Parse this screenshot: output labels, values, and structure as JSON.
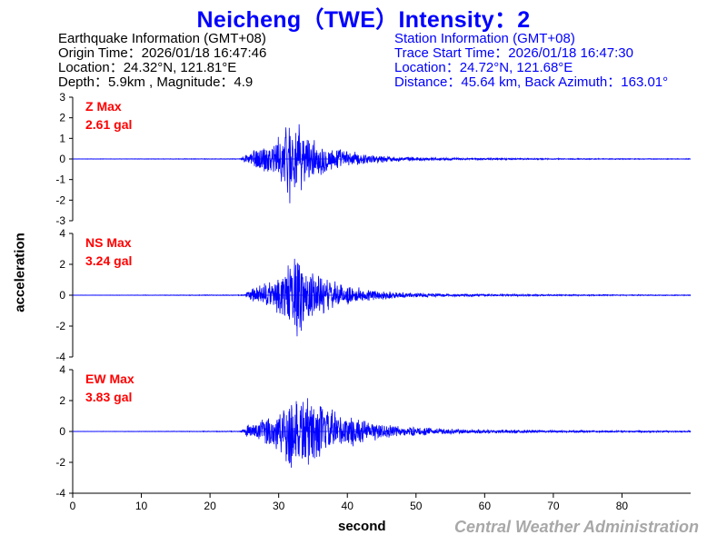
{
  "header": {
    "title": "Neicheng（TWE）Intensity：2"
  },
  "earthquake_info": {
    "heading": "Earthquake Information  (GMT+08)",
    "origin_time": "Origin Time：2026/01/18 16:47:46",
    "location": "Location：24.32°N, 121.81°E",
    "depth_magnitude": "Depth：5.9km , Magnitude：4.9"
  },
  "station_info": {
    "heading": "Station Information  (GMT+08)",
    "trace_start": "Trace Start Time：2026/01/18 16:47:30",
    "location": "Location：24.72°N, 121.68°E",
    "distance": "Distance：45.64 km, Back Azimuth：163.01°"
  },
  "footer": {
    "agency": "Central Weather Administration"
  },
  "colors": {
    "title": "#0000ff",
    "trace": "#0000ff",
    "label": "#ff0000",
    "agency": "#a8a8a8"
  },
  "chart_data": {
    "type": "line",
    "xlabel": "second",
    "ylabel": "acceleration",
    "xlim": [
      0,
      90
    ],
    "xticks": [
      0,
      10,
      20,
      30,
      40,
      50,
      60,
      70,
      80
    ],
    "panels": [
      {
        "name": "Z",
        "label": "Z Max",
        "max_label": "2.61 gal",
        "peak": 2.61,
        "ylim": [
          -3,
          3
        ],
        "yticks": [
          -3,
          -2,
          -1,
          0,
          1,
          2,
          3
        ],
        "envelope": [
          [
            0,
            0.01
          ],
          [
            24.5,
            0.02
          ],
          [
            25.5,
            0.4
          ],
          [
            28,
            0.8
          ],
          [
            30,
            1.1
          ],
          [
            31.5,
            2.4
          ],
          [
            33,
            1.7
          ],
          [
            35,
            1.0
          ],
          [
            38,
            0.6
          ],
          [
            42,
            0.3
          ],
          [
            47,
            0.12
          ],
          [
            55,
            0.06
          ],
          [
            70,
            0.03
          ],
          [
            90,
            0.02
          ]
        ]
      },
      {
        "name": "NS",
        "label": "NS Max",
        "max_label": "3.24 gal",
        "peak": 3.24,
        "ylim": [
          -4,
          4
        ],
        "yticks": [
          -4,
          -2,
          0,
          2,
          4
        ],
        "envelope": [
          [
            0,
            0.01
          ],
          [
            25,
            0.03
          ],
          [
            26,
            0.5
          ],
          [
            29,
            1.0
          ],
          [
            31,
            2.0
          ],
          [
            32.5,
            3.0
          ],
          [
            34,
            2.2
          ],
          [
            36,
            1.4
          ],
          [
            39,
            0.8
          ],
          [
            43,
            0.4
          ],
          [
            48,
            0.2
          ],
          [
            55,
            0.1
          ],
          [
            70,
            0.05
          ],
          [
            90,
            0.03
          ]
        ]
      },
      {
        "name": "EW",
        "label": "EW Max",
        "max_label": "3.83 gal",
        "peak": 3.83,
        "ylim": [
          -4,
          4
        ],
        "yticks": [
          -4,
          -2,
          0,
          2,
          4
        ],
        "envelope": [
          [
            0,
            0.01
          ],
          [
            24.5,
            0.03
          ],
          [
            25.5,
            0.5
          ],
          [
            28,
            0.9
          ],
          [
            30,
            1.6
          ],
          [
            32,
            3.0
          ],
          [
            34,
            2.6
          ],
          [
            36,
            1.9
          ],
          [
            39,
            1.3
          ],
          [
            43,
            0.7
          ],
          [
            48,
            0.35
          ],
          [
            55,
            0.18
          ],
          [
            70,
            0.08
          ],
          [
            90,
            0.05
          ]
        ]
      }
    ]
  }
}
